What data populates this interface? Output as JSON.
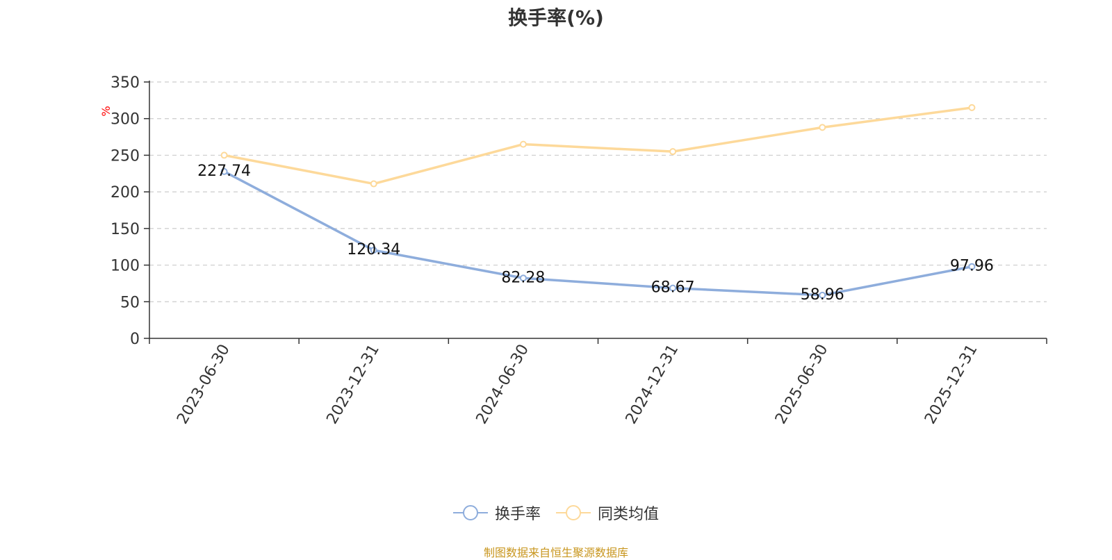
{
  "title": "换手率(%)",
  "source_note": "制图数据来自恒生聚源数据库",
  "colors": {
    "series_1": "#8eaddc",
    "series_2": "#fdd99a",
    "axis": "#333333",
    "grid": "#cccccc",
    "unit": "#ff0000",
    "source": "#c8961e"
  },
  "chart_data": {
    "type": "line",
    "title": "换手率(%)",
    "xlabel": "",
    "ylabel": "%",
    "ylim": [
      0,
      350
    ],
    "yticks": [
      0,
      50,
      100,
      150,
      200,
      250,
      300,
      350
    ],
    "grid": true,
    "legend_position": "bottom-center",
    "categories": [
      "2023-06-30",
      "2023-12-31",
      "2024-06-30",
      "2024-12-31",
      "2025-06-30",
      "2025-12-31"
    ],
    "series": [
      {
        "name": "换手率",
        "values": [
          227.74,
          120.34,
          82.28,
          68.67,
          58.96,
          97.96
        ],
        "data_labels": [
          "227.74",
          "120.34",
          "82.28",
          "68.67",
          "58.96",
          "97.96"
        ],
        "color": "#8eaddc"
      },
      {
        "name": "同类均值",
        "values": [
          250,
          211,
          265,
          255,
          288,
          315
        ],
        "color": "#fdd99a"
      }
    ]
  }
}
